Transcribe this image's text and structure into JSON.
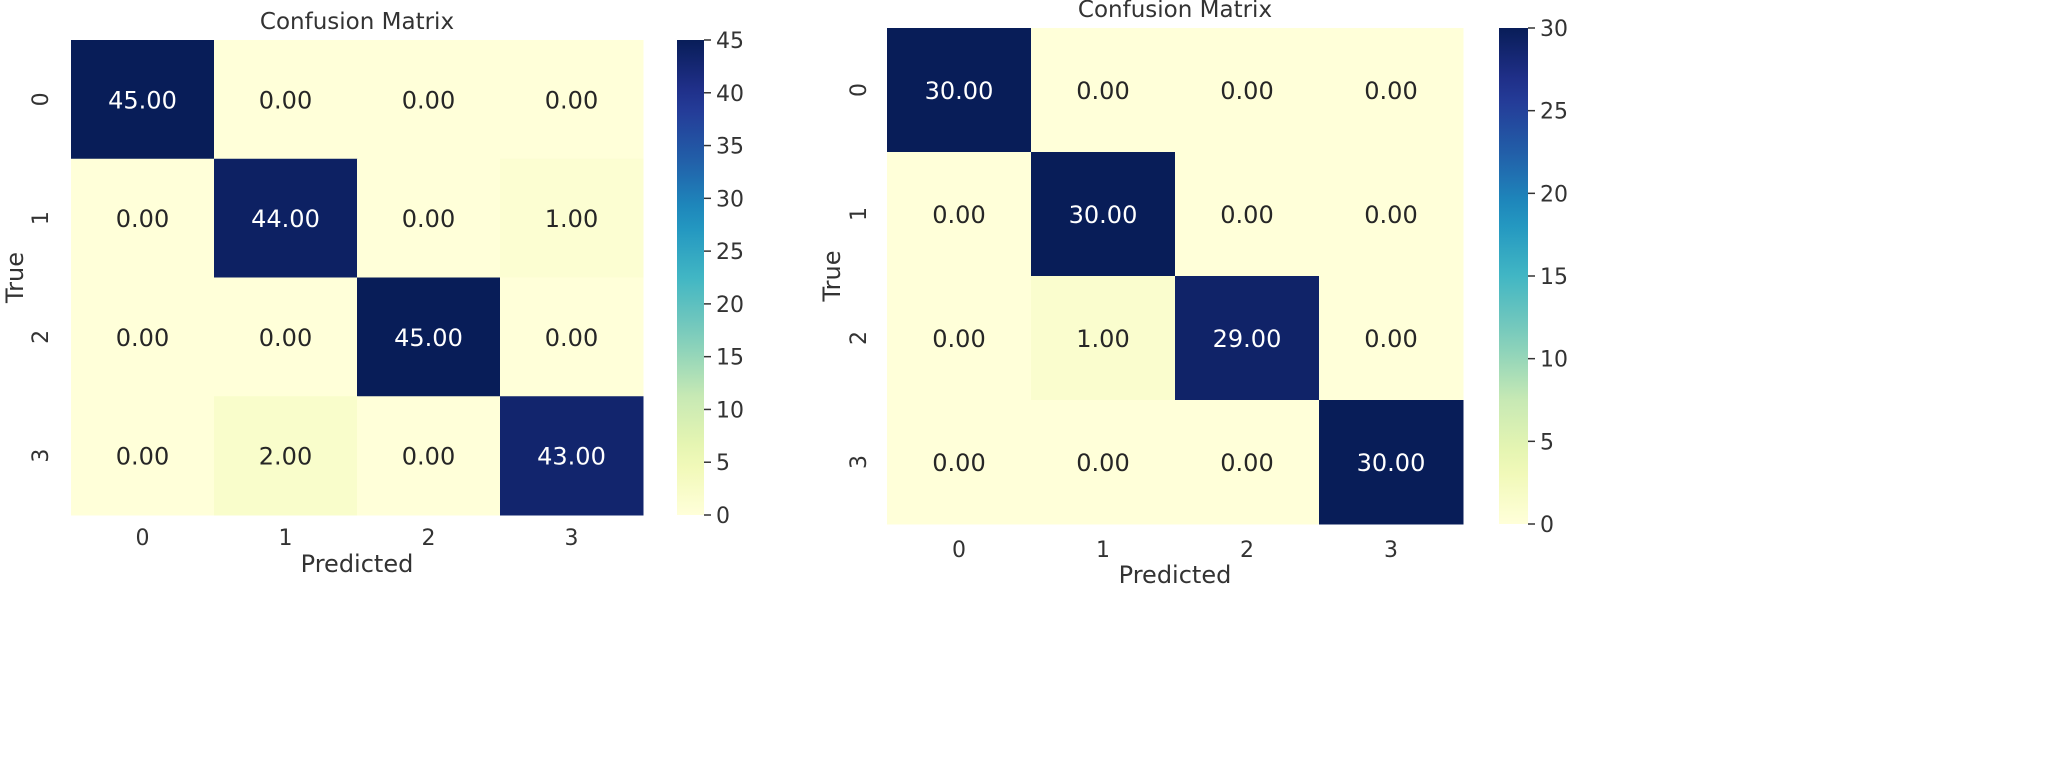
{
  "chart_data": [
    {
      "type": "heatmap",
      "title": "Confusion Matrix",
      "xlabel": "Predicted",
      "ylabel": "True",
      "x_categories": [
        "0",
        "1",
        "2",
        "3"
      ],
      "y_categories": [
        "0",
        "1",
        "2",
        "3"
      ],
      "values": [
        [
          45,
          0,
          0,
          0
        ],
        [
          0,
          44,
          0,
          1
        ],
        [
          0,
          0,
          45,
          0
        ],
        [
          0,
          2,
          0,
          43
        ]
      ],
      "cell_labels": [
        [
          "45.00",
          "0.00",
          "0.00",
          "0.00"
        ],
        [
          "0.00",
          "44.00",
          "0.00",
          "1.00"
        ],
        [
          "0.00",
          "0.00",
          "45.00",
          "0.00"
        ],
        [
          "0.00",
          "2.00",
          "0.00",
          "43.00"
        ]
      ],
      "colormap": "YlGnBu",
      "colorbar_range": [
        0,
        45
      ],
      "colorbar_ticks": [
        0,
        5,
        10,
        15,
        20,
        25,
        30,
        35,
        40,
        45
      ]
    },
    {
      "type": "heatmap",
      "title": "Confusion Matrix",
      "xlabel": "Predicted",
      "ylabel": "True",
      "x_categories": [
        "0",
        "1",
        "2",
        "3"
      ],
      "y_categories": [
        "0",
        "1",
        "2",
        "3"
      ],
      "values": [
        [
          30,
          0,
          0,
          0
        ],
        [
          0,
          30,
          0,
          0
        ],
        [
          0,
          1,
          29,
          0
        ],
        [
          0,
          0,
          0,
          30
        ]
      ],
      "cell_labels": [
        [
          "30.00",
          "0.00",
          "0.00",
          "0.00"
        ],
        [
          "0.00",
          "30.00",
          "0.00",
          "0.00"
        ],
        [
          "0.00",
          "1.00",
          "29.00",
          "0.00"
        ],
        [
          "0.00",
          "0.00",
          "0.00",
          "30.00"
        ]
      ],
      "colormap": "YlGnBu",
      "colorbar_range": [
        0,
        30
      ],
      "colorbar_ticks": [
        0,
        5,
        10,
        15,
        20,
        25,
        30
      ]
    }
  ]
}
